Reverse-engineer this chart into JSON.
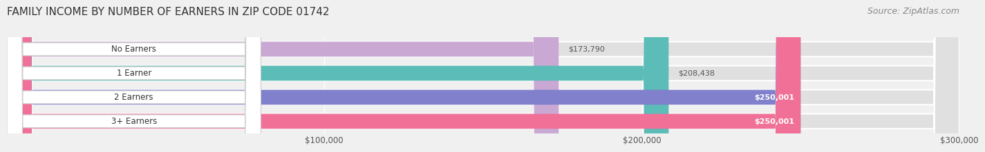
{
  "title": "FAMILY INCOME BY NUMBER OF EARNERS IN ZIP CODE 01742",
  "source": "Source: ZipAtlas.com",
  "categories": [
    "No Earners",
    "1 Earner",
    "2 Earners",
    "3+ Earners"
  ],
  "values": [
    173790,
    208438,
    250001,
    250001
  ],
  "bar_colors": [
    "#c9a8d4",
    "#5bbcb8",
    "#8080cc",
    "#f07098"
  ],
  "value_labels": [
    "$173,790",
    "$208,438",
    "$250,001",
    "$250,001"
  ],
  "label_inside": [
    false,
    false,
    true,
    true
  ],
  "xlim": [
    0,
    300000
  ],
  "xticks": [
    100000,
    200000,
    300000
  ],
  "xticklabels": [
    "$100,000",
    "$200,000",
    "$300,000"
  ],
  "background_color": "#f0f0f0",
  "bar_background": "#e8e8e8",
  "title_fontsize": 11,
  "source_fontsize": 9
}
